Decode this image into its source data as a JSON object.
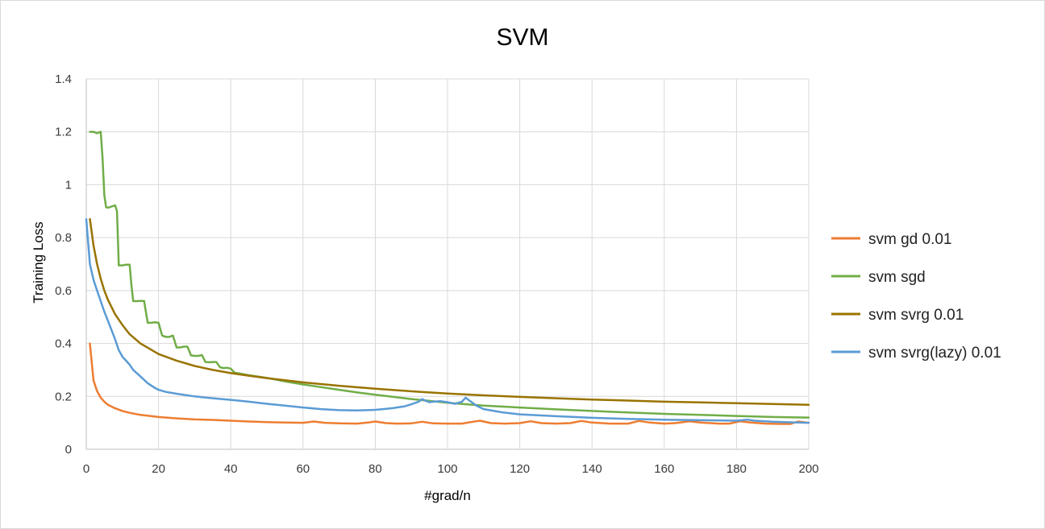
{
  "chart_data": {
    "type": "line",
    "title": "SVM",
    "xlabel": "#grad/n",
    "ylabel": "Training Loss",
    "xlim": [
      0,
      200
    ],
    "ylim": [
      0,
      1.4
    ],
    "x_ticks": [
      "0",
      "20",
      "40",
      "60",
      "80",
      "100",
      "120",
      "140",
      "160",
      "180",
      "200"
    ],
    "y_ticks": [
      "0",
      "0.2",
      "0.4",
      "0.6",
      "0.8",
      "1",
      "1.2",
      "1.4"
    ],
    "grid": true,
    "legend_position": "right",
    "series": [
      {
        "name": "svm gd 0.01",
        "color": "#ED7D31",
        "points": [
          [
            1,
            0.4
          ],
          [
            2,
            0.26
          ],
          [
            3,
            0.22
          ],
          [
            4,
            0.195
          ],
          [
            5,
            0.18
          ],
          [
            6,
            0.168
          ],
          [
            8,
            0.155
          ],
          [
            10,
            0.145
          ],
          [
            12,
            0.138
          ],
          [
            15,
            0.13
          ],
          [
            20,
            0.122
          ],
          [
            25,
            0.117
          ],
          [
            30,
            0.113
          ],
          [
            35,
            0.111
          ],
          [
            40,
            0.108
          ],
          [
            45,
            0.105
          ],
          [
            50,
            0.103
          ],
          [
            55,
            0.101
          ],
          [
            60,
            0.1
          ],
          [
            63,
            0.105
          ],
          [
            66,
            0.1
          ],
          [
            70,
            0.098
          ],
          [
            75,
            0.097
          ],
          [
            78,
            0.101
          ],
          [
            80,
            0.105
          ],
          [
            83,
            0.099
          ],
          [
            86,
            0.097
          ],
          [
            90,
            0.098
          ],
          [
            93,
            0.104
          ],
          [
            96,
            0.098
          ],
          [
            100,
            0.097
          ],
          [
            104,
            0.097
          ],
          [
            107,
            0.104
          ],
          [
            109,
            0.108
          ],
          [
            112,
            0.099
          ],
          [
            116,
            0.097
          ],
          [
            120,
            0.099
          ],
          [
            123,
            0.106
          ],
          [
            126,
            0.099
          ],
          [
            130,
            0.097
          ],
          [
            134,
            0.099
          ],
          [
            137,
            0.107
          ],
          [
            140,
            0.101
          ],
          [
            145,
            0.097
          ],
          [
            150,
            0.097
          ],
          [
            153,
            0.107
          ],
          [
            156,
            0.101
          ],
          [
            160,
            0.097
          ],
          [
            163,
            0.099
          ],
          [
            167,
            0.106
          ],
          [
            170,
            0.101
          ],
          [
            175,
            0.097
          ],
          [
            178,
            0.097
          ],
          [
            181,
            0.106
          ],
          [
            184,
            0.101
          ],
          [
            188,
            0.097
          ],
          [
            192,
            0.096
          ],
          [
            195,
            0.096
          ],
          [
            197,
            0.105
          ],
          [
            200,
            0.1
          ]
        ]
      },
      {
        "name": "svm sgd",
        "color": "#70AD47",
        "points": [
          [
            1,
            1.2
          ],
          [
            2,
            1.2
          ],
          [
            3,
            1.195
          ],
          [
            4,
            1.2
          ],
          [
            4.5,
            1.1
          ],
          [
            5,
            0.96
          ],
          [
            5.5,
            0.915
          ],
          [
            6,
            0.913
          ],
          [
            7,
            0.918
          ],
          [
            8,
            0.922
          ],
          [
            8.5,
            0.9
          ],
          [
            9,
            0.695
          ],
          [
            10,
            0.695
          ],
          [
            11,
            0.698
          ],
          [
            12,
            0.698
          ],
          [
            12.5,
            0.62
          ],
          [
            13,
            0.56
          ],
          [
            14,
            0.56
          ],
          [
            15,
            0.561
          ],
          [
            16,
            0.561
          ],
          [
            16.5,
            0.52
          ],
          [
            17,
            0.478
          ],
          [
            18,
            0.478
          ],
          [
            19,
            0.48
          ],
          [
            20,
            0.478
          ],
          [
            21,
            0.43
          ],
          [
            22,
            0.425
          ],
          [
            23,
            0.425
          ],
          [
            24,
            0.43
          ],
          [
            25,
            0.385
          ],
          [
            26,
            0.385
          ],
          [
            27,
            0.388
          ],
          [
            28,
            0.388
          ],
          [
            29,
            0.355
          ],
          [
            30,
            0.353
          ],
          [
            31,
            0.353
          ],
          [
            32,
            0.356
          ],
          [
            33,
            0.33
          ],
          [
            34,
            0.329
          ],
          [
            35,
            0.33
          ],
          [
            36,
            0.33
          ],
          [
            37,
            0.31
          ],
          [
            38,
            0.307
          ],
          [
            39,
            0.308
          ],
          [
            40,
            0.305
          ],
          [
            41,
            0.29
          ],
          [
            45,
            0.28
          ],
          [
            50,
            0.27
          ],
          [
            55,
            0.257
          ],
          [
            60,
            0.245
          ],
          [
            65,
            0.235
          ],
          [
            70,
            0.225
          ],
          [
            75,
            0.215
          ],
          [
            80,
            0.206
          ],
          [
            85,
            0.198
          ],
          [
            90,
            0.19
          ],
          [
            95,
            0.183
          ],
          [
            100,
            0.176
          ],
          [
            110,
            0.165
          ],
          [
            120,
            0.158
          ],
          [
            130,
            0.151
          ],
          [
            140,
            0.145
          ],
          [
            150,
            0.139
          ],
          [
            160,
            0.134
          ],
          [
            170,
            0.13
          ],
          [
            180,
            0.126
          ],
          [
            190,
            0.122
          ],
          [
            200,
            0.12
          ]
        ]
      },
      {
        "name": "svm svrg 0.01",
        "color": "#997300",
        "points": [
          [
            1,
            0.87
          ],
          [
            2,
            0.77
          ],
          [
            3,
            0.7
          ],
          [
            4,
            0.645
          ],
          [
            5,
            0.6
          ],
          [
            6,
            0.565
          ],
          [
            8,
            0.51
          ],
          [
            10,
            0.47
          ],
          [
            12,
            0.435
          ],
          [
            15,
            0.4
          ],
          [
            20,
            0.36
          ],
          [
            25,
            0.335
          ],
          [
            30,
            0.315
          ],
          [
            35,
            0.3
          ],
          [
            40,
            0.288
          ],
          [
            45,
            0.278
          ],
          [
            50,
            0.269
          ],
          [
            60,
            0.253
          ],
          [
            70,
            0.24
          ],
          [
            80,
            0.229
          ],
          [
            90,
            0.219
          ],
          [
            100,
            0.211
          ],
          [
            110,
            0.204
          ],
          [
            120,
            0.198
          ],
          [
            130,
            0.193
          ],
          [
            140,
            0.188
          ],
          [
            150,
            0.184
          ],
          [
            160,
            0.18
          ],
          [
            170,
            0.177
          ],
          [
            180,
            0.174
          ],
          [
            190,
            0.171
          ],
          [
            200,
            0.168
          ]
        ]
      },
      {
        "name": "svm svrg(lazy) 0.01",
        "color": "#5B9BD5",
        "points": [
          [
            0,
            0.87
          ],
          [
            1,
            0.7
          ],
          [
            2,
            0.64
          ],
          [
            3,
            0.6
          ],
          [
            4,
            0.56
          ],
          [
            5,
            0.52
          ],
          [
            6,
            0.485
          ],
          [
            7,
            0.45
          ],
          [
            8,
            0.415
          ],
          [
            9,
            0.375
          ],
          [
            10,
            0.35
          ],
          [
            11,
            0.335
          ],
          [
            12,
            0.32
          ],
          [
            13,
            0.3
          ],
          [
            15,
            0.275
          ],
          [
            17,
            0.25
          ],
          [
            19,
            0.232
          ],
          [
            20,
            0.225
          ],
          [
            22,
            0.217
          ],
          [
            25,
            0.21
          ],
          [
            30,
            0.2
          ],
          [
            35,
            0.193
          ],
          [
            40,
            0.187
          ],
          [
            45,
            0.18
          ],
          [
            50,
            0.172
          ],
          [
            55,
            0.165
          ],
          [
            60,
            0.158
          ],
          [
            65,
            0.152
          ],
          [
            70,
            0.148
          ],
          [
            75,
            0.147
          ],
          [
            80,
            0.149
          ],
          [
            83,
            0.153
          ],
          [
            85,
            0.156
          ],
          [
            88,
            0.162
          ],
          [
            90,
            0.17
          ],
          [
            92,
            0.18
          ],
          [
            93,
            0.19
          ],
          [
            94,
            0.183
          ],
          [
            95,
            0.178
          ],
          [
            96,
            0.18
          ],
          [
            98,
            0.182
          ],
          [
            100,
            0.178
          ],
          [
            102,
            0.172
          ],
          [
            104,
            0.18
          ],
          [
            105,
            0.195
          ],
          [
            106,
            0.185
          ],
          [
            108,
            0.165
          ],
          [
            110,
            0.152
          ],
          [
            115,
            0.14
          ],
          [
            120,
            0.132
          ],
          [
            130,
            0.125
          ],
          [
            140,
            0.119
          ],
          [
            150,
            0.115
          ],
          [
            160,
            0.112
          ],
          [
            170,
            0.11
          ],
          [
            180,
            0.108
          ],
          [
            183,
            0.112
          ],
          [
            185,
            0.108
          ],
          [
            190,
            0.104
          ],
          [
            195,
            0.102
          ],
          [
            200,
            0.1
          ]
        ]
      }
    ]
  }
}
